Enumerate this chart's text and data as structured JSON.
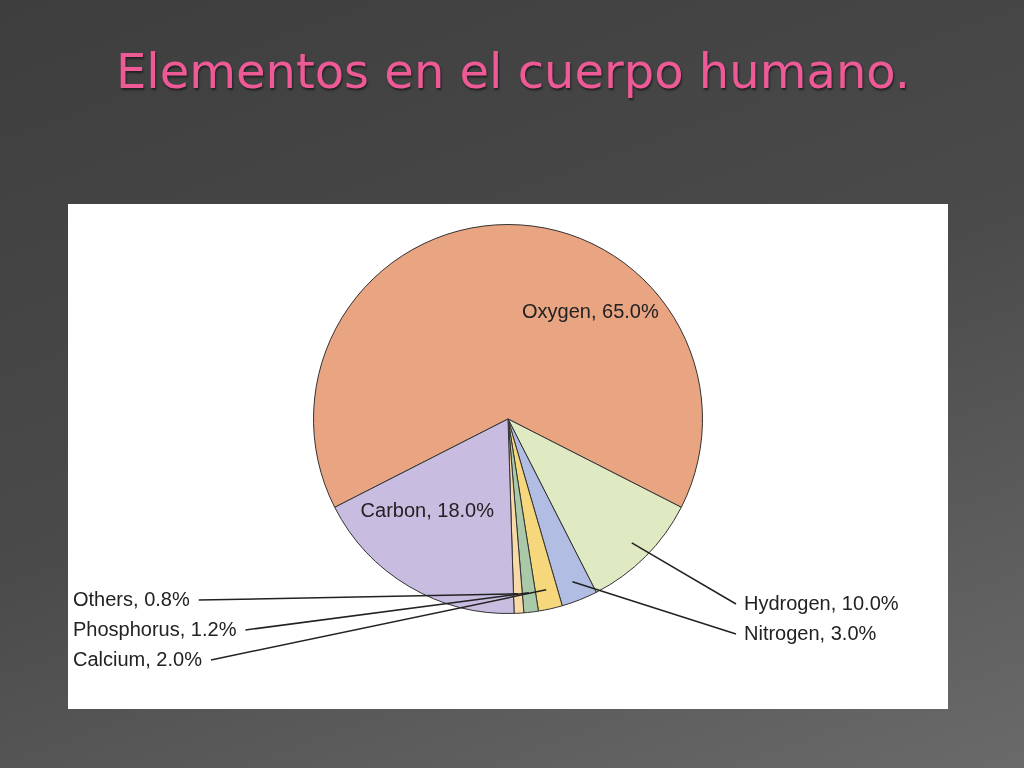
{
  "chart_data": {
    "type": "pie",
    "title": "Elementos en el cuerpo humano.",
    "categories": [
      "Oxygen",
      "Hydrogen",
      "Nitrogen",
      "Calcium",
      "Phosphorus",
      "Others",
      "Carbon"
    ],
    "values": [
      65,
      10,
      3,
      2,
      1.2,
      0.8,
      18
    ],
    "value_labels": [
      "65.0%",
      "10.0%",
      "3.0%",
      "2.0%",
      "1.2%",
      "0.8%",
      "18.0%"
    ],
    "colors": [
      "#e9a482",
      "#dfeac2",
      "#b1bde2",
      "#f6d77c",
      "#a9c9a9",
      "#f8d9a8",
      "#c8bde0"
    ],
    "legend": false
  }
}
